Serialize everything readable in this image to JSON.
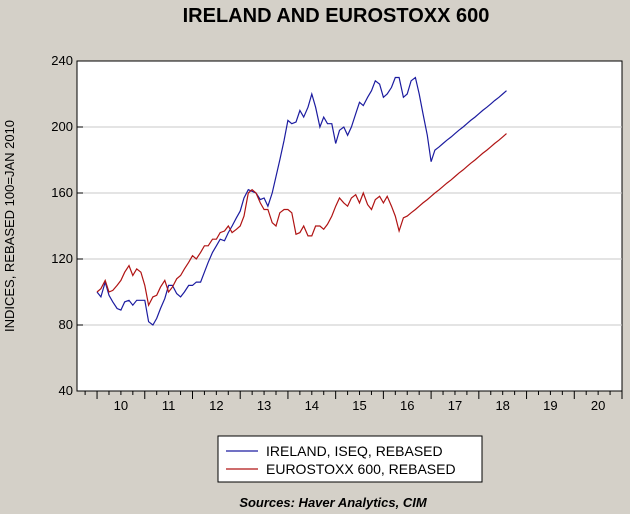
{
  "chart_data": {
    "type": "line",
    "title": "IRELAND AND EUROSTOXX 600",
    "ylabel": "INDICES, REBASED 100=JAN 2010",
    "xlabel": "",
    "source": "Sources:  Haver Analytics, CIM",
    "ylim": [
      40,
      240
    ],
    "yticks": [
      "40",
      "80",
      "120",
      "160",
      "200",
      "240"
    ],
    "xlim": [
      2009.58,
      2021.0
    ],
    "xtick_labels": [
      "10",
      "11",
      "12",
      "13",
      "14",
      "15",
      "16",
      "17",
      "18",
      "19",
      "20"
    ],
    "grid": true,
    "legend_position": "bottom",
    "series": [
      {
        "name": "IRELAND, ISEQ, REBASED",
        "color": "#1c1ca0",
        "x": [
          2010.0,
          2010.08,
          2010.17,
          2010.25,
          2010.33,
          2010.42,
          2010.5,
          2010.58,
          2010.67,
          2010.75,
          2010.83,
          2010.92,
          2011.0,
          2011.08,
          2011.17,
          2011.25,
          2011.33,
          2011.42,
          2011.5,
          2011.58,
          2011.67,
          2011.75,
          2011.83,
          2011.92,
          2012.0,
          2012.08,
          2012.17,
          2012.25,
          2012.33,
          2012.42,
          2012.5,
          2012.58,
          2012.67,
          2012.75,
          2012.83,
          2012.92,
          2013.0,
          2013.08,
          2013.17,
          2013.25,
          2013.33,
          2013.42,
          2013.5,
          2013.58,
          2013.67,
          2013.75,
          2013.83,
          2013.92,
          2014.0,
          2014.08,
          2014.17,
          2014.25,
          2014.33,
          2014.42,
          2014.5,
          2014.58,
          2014.67,
          2014.75,
          2014.83,
          2014.92,
          2015.0,
          2015.08,
          2015.17,
          2015.25,
          2015.33,
          2015.42,
          2015.5,
          2015.58,
          2015.67,
          2015.75,
          2015.83,
          2015.92,
          2016.0,
          2016.08,
          2016.17,
          2016.25,
          2016.33,
          2016.42,
          2016.5,
          2016.58,
          2016.67,
          2016.75,
          2016.83,
          2016.92,
          2017.0,
          2017.08,
          2017.17,
          2017.25,
          2017.33,
          2017.42,
          2017.5,
          2017.58,
          2017.67,
          2017.75,
          2017.83,
          2017.92,
          2018.0,
          2018.08,
          2018.17,
          2018.25,
          2018.33,
          2018.42,
          2018.5,
          2018.58
        ],
        "values": [
          100,
          97,
          106,
          98,
          94,
          90,
          89,
          94,
          95,
          92,
          95,
          95,
          95,
          82,
          80,
          84,
          90,
          96,
          104,
          104,
          99,
          97,
          100,
          104,
          104,
          106,
          106,
          112,
          118,
          124,
          128,
          132,
          131,
          136,
          140,
          145,
          149,
          157,
          162,
          161,
          160,
          156,
          157,
          152,
          160,
          170,
          180,
          192,
          204,
          202,
          203,
          210,
          206,
          212,
          220,
          212,
          200,
          206,
          202,
          202,
          190,
          198,
          200,
          195,
          200,
          208,
          215,
          213,
          218,
          222,
          228,
          226,
          218,
          220,
          224,
          230,
          230,
          218,
          220,
          228,
          230,
          220,
          208,
          195,
          179,
          186,
          188,
          190,
          192,
          194,
          196,
          198,
          200,
          202,
          204,
          206,
          208,
          210,
          212,
          214,
          216,
          218,
          220,
          222
        ]
      },
      {
        "name": "EUROSTOXX 600, REBASED",
        "color": "#b01414",
        "x": [
          2010.0,
          2010.08,
          2010.17,
          2010.25,
          2010.33,
          2010.42,
          2010.5,
          2010.58,
          2010.67,
          2010.75,
          2010.83,
          2010.92,
          2011.0,
          2011.08,
          2011.17,
          2011.25,
          2011.33,
          2011.42,
          2011.5,
          2011.58,
          2011.67,
          2011.75,
          2011.83,
          2011.92,
          2012.0,
          2012.08,
          2012.17,
          2012.25,
          2012.33,
          2012.42,
          2012.5,
          2012.58,
          2012.67,
          2012.75,
          2012.83,
          2012.92,
          2013.0,
          2013.08,
          2013.17,
          2013.25,
          2013.33,
          2013.42,
          2013.5,
          2013.58,
          2013.67,
          2013.75,
          2013.83,
          2013.92,
          2014.0,
          2014.08,
          2014.17,
          2014.25,
          2014.33,
          2014.42,
          2014.5,
          2014.58,
          2014.67,
          2014.75,
          2014.83,
          2014.92,
          2015.0,
          2015.08,
          2015.17,
          2015.25,
          2015.33,
          2015.42,
          2015.5,
          2015.58,
          2015.67,
          2015.75,
          2015.83,
          2015.92,
          2016.0,
          2016.08,
          2016.17,
          2016.25,
          2016.33,
          2016.42,
          2016.5,
          2016.58,
          2016.67,
          2016.75,
          2016.83,
          2016.92,
          2017.0,
          2017.08,
          2017.17,
          2017.25,
          2017.33,
          2017.42,
          2017.5,
          2017.58,
          2017.67,
          2017.75,
          2017.83,
          2017.92,
          2018.0,
          2018.08,
          2018.17,
          2018.25,
          2018.33,
          2018.42,
          2018.5,
          2018.58
        ],
        "values": [
          100,
          102,
          107,
          100,
          101,
          104,
          107,
          112,
          116,
          110,
          114,
          112,
          104,
          92,
          97,
          98,
          103,
          107,
          100,
          103,
          108,
          110,
          114,
          118,
          122,
          120,
          124,
          128,
          128,
          132,
          132,
          136,
          137,
          140,
          136,
          138,
          140,
          146,
          160,
          162,
          160,
          154,
          150,
          150,
          142,
          140,
          148,
          150,
          150,
          148,
          135,
          136,
          140,
          134,
          134,
          140,
          140,
          138,
          141,
          146,
          152,
          157,
          154,
          152,
          157,
          159,
          154,
          160,
          153,
          150,
          156,
          158,
          154,
          158,
          152,
          146,
          137,
          145,
          146,
          148,
          150,
          152,
          154,
          156,
          158,
          160,
          162,
          164,
          166,
          168,
          170,
          172,
          174,
          176,
          178,
          180,
          182,
          184,
          186,
          188,
          190,
          192,
          194,
          196
        ]
      }
    ]
  }
}
